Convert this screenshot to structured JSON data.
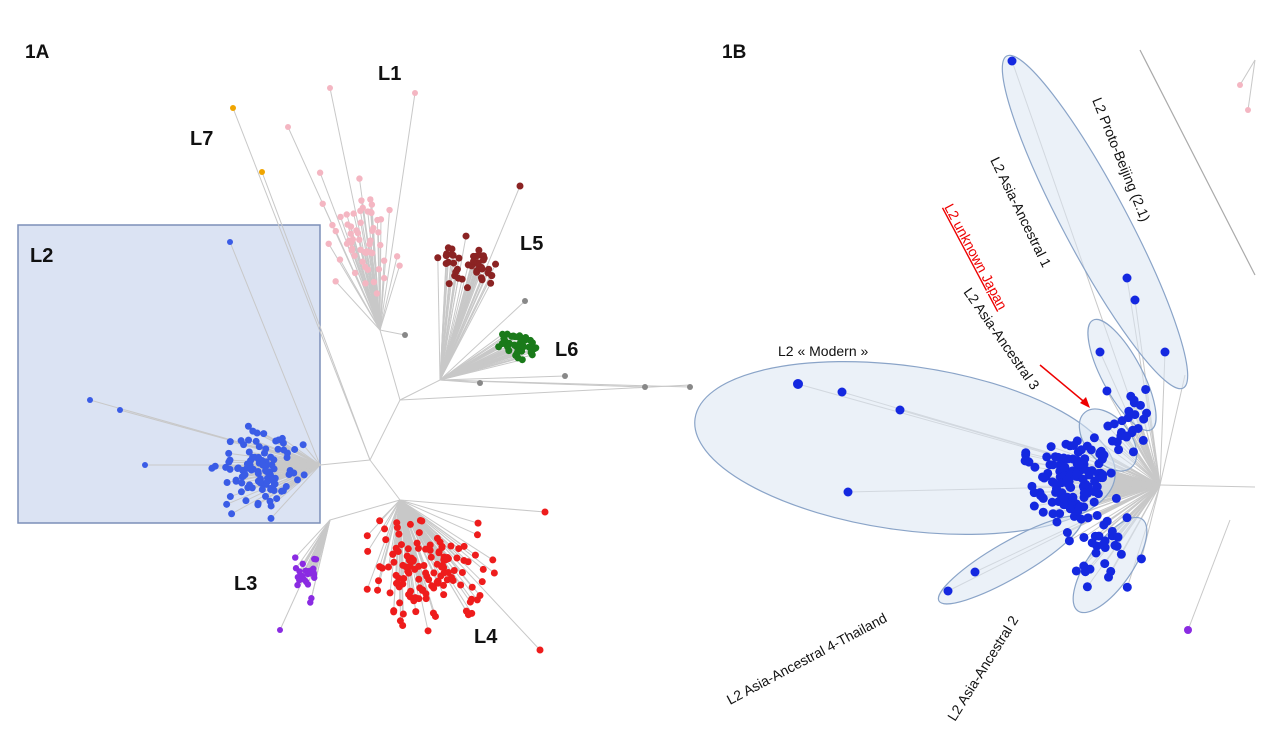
{
  "panels": [
    {
      "label": "1A",
      "lineages": [
        "L1",
        "L7",
        "L2",
        "L5",
        "L6",
        "L3",
        "L4"
      ]
    },
    {
      "label": "1B",
      "clades": [
        "L2 Proto-Beijing (2.1)",
        "L2 Asia-Ancestral 1",
        "L2 unknown Japan",
        "L2 Asia-Ancestral 3",
        "L2 « Modern »",
        "L2 Asia-Ancestral 4-Thailand",
        "L2 Asia-Ancestral 2"
      ]
    }
  ]
}
